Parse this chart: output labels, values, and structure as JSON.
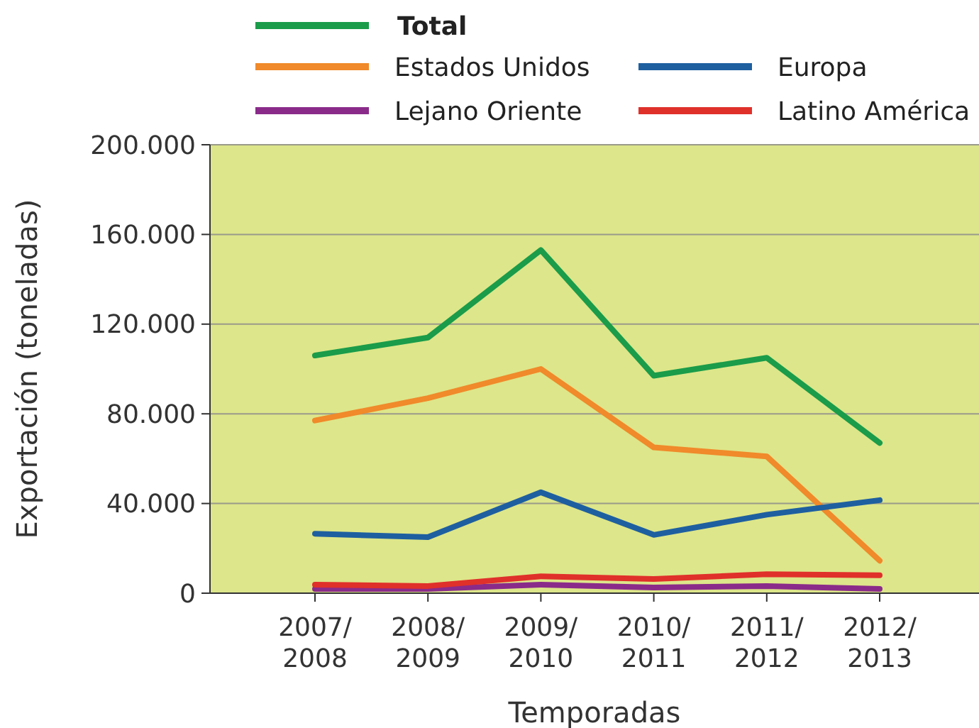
{
  "chart_data": {
    "type": "line",
    "xlabel": "Temporadas",
    "ylabel": "Exportación (toneladas)",
    "categories": [
      "2007/2008",
      "2008/2009",
      "2009/2010",
      "2010/2011",
      "2011/2012",
      "2012/2013"
    ],
    "series": [
      {
        "name": "Total",
        "color": "#1a9c4a",
        "values": [
          106000,
          114000,
          153000,
          97000,
          105000,
          67000
        ]
      },
      {
        "name": "Estados Unidos",
        "color": "#f08a2a",
        "values": [
          77000,
          87000,
          100000,
          65000,
          61000,
          14500
        ]
      },
      {
        "name": "Europa",
        "color": "#1e5fa0",
        "values": [
          26500,
          25000,
          45000,
          26000,
          35000,
          41500
        ]
      },
      {
        "name": "Lejano Oriente",
        "color": "#8a2b8a",
        "values": [
          1900,
          1900,
          3800,
          2500,
          3200,
          1900
        ]
      },
      {
        "name": "Latino América",
        "color": "#e0302a",
        "values": [
          3800,
          3200,
          7500,
          6300,
          8500,
          8000
        ]
      }
    ],
    "ylim": [
      0,
      200000
    ],
    "yticks": [
      {
        "value": 0,
        "label": "0"
      },
      {
        "value": 40000,
        "label": "40.000"
      },
      {
        "value": 80000,
        "label": "80.000"
      },
      {
        "value": 120000,
        "label": "120.000"
      },
      {
        "value": 160000,
        "label": "160.000"
      },
      {
        "value": 200000,
        "label": "200.000"
      }
    ],
    "grid": "y",
    "legend": "top",
    "marker": "none",
    "line_style": "solid"
  }
}
